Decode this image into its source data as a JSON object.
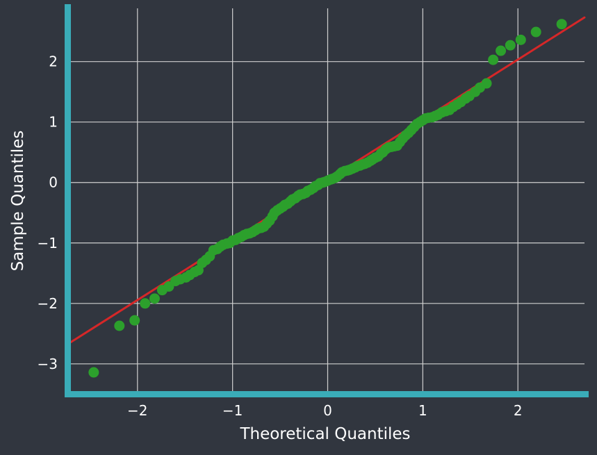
{
  "chart_data": {
    "type": "scatter",
    "title": "",
    "xlabel": "Theoretical Quantiles",
    "ylabel": "Sample Quantiles",
    "xlim": [
      -2.7,
      2.7
    ],
    "ylim": [
      -3.45,
      2.95
    ],
    "xticks": [
      -2,
      -1,
      0,
      1,
      2
    ],
    "yticks": [
      -3,
      -2,
      -1,
      0,
      1,
      2
    ],
    "xtick_labels": [
      "−2",
      "−1",
      "0",
      "1",
      "2"
    ],
    "ytick_labels": [
      "−3",
      "−2",
      "−1",
      "0",
      "1",
      "2"
    ],
    "grid": true,
    "colors": {
      "background": "#31363f",
      "points": "#2ca02c",
      "line": "#d62728",
      "spines": "#3aacb8",
      "grid": "#d0d0d0"
    },
    "series": [
      {
        "kind": "points",
        "points": [
          [
            -2.46,
            -3.14
          ],
          [
            -2.19,
            -2.37
          ],
          [
            -2.03,
            -2.28
          ],
          [
            -1.92,
            -2.0
          ],
          [
            -1.82,
            -1.92
          ],
          [
            -1.74,
            -1.78
          ],
          [
            -1.67,
            -1.72
          ],
          [
            -1.6,
            -1.63
          ],
          [
            -1.55,
            -1.6
          ],
          [
            -1.49,
            -1.57
          ],
          [
            -1.45,
            -1.53
          ],
          [
            -1.4,
            -1.48
          ],
          [
            -1.36,
            -1.45
          ],
          [
            -1.32,
            -1.33
          ],
          [
            -1.28,
            -1.28
          ],
          [
            -1.24,
            -1.22
          ],
          [
            -1.2,
            -1.12
          ],
          [
            -1.16,
            -1.1
          ],
          [
            -1.13,
            -1.06
          ],
          [
            -1.1,
            -1.03
          ],
          [
            -1.06,
            -1.01
          ],
          [
            -1.03,
            -1.0
          ],
          [
            -1.0,
            -0.96
          ],
          [
            -0.97,
            -0.95
          ],
          [
            -0.94,
            -0.92
          ],
          [
            -0.91,
            -0.9
          ],
          [
            -0.88,
            -0.87
          ],
          [
            -0.85,
            -0.85
          ],
          [
            -0.82,
            -0.84
          ],
          [
            -0.79,
            -0.82
          ],
          [
            -0.76,
            -0.79
          ],
          [
            -0.73,
            -0.76
          ],
          [
            -0.7,
            -0.75
          ],
          [
            -0.67,
            -0.73
          ],
          [
            -0.64,
            -0.68
          ],
          [
            -0.61,
            -0.63
          ],
          [
            -0.58,
            -0.56
          ],
          [
            -0.56,
            -0.5
          ],
          [
            -0.53,
            -0.46
          ],
          [
            -0.5,
            -0.43
          ],
          [
            -0.47,
            -0.4
          ],
          [
            -0.45,
            -0.37
          ],
          [
            -0.42,
            -0.35
          ],
          [
            -0.39,
            -0.31
          ],
          [
            -0.37,
            -0.28
          ],
          [
            -0.34,
            -0.26
          ],
          [
            -0.31,
            -0.22
          ],
          [
            -0.29,
            -0.2
          ],
          [
            -0.26,
            -0.19
          ],
          [
            -0.23,
            -0.17
          ],
          [
            -0.21,
            -0.14
          ],
          [
            -0.18,
            -0.12
          ],
          [
            -0.15,
            -0.09
          ],
          [
            -0.13,
            -0.06
          ],
          [
            -0.1,
            -0.04
          ],
          [
            -0.08,
            -0.01
          ],
          [
            -0.05,
            0.0
          ],
          [
            -0.03,
            0.01
          ],
          [
            0.0,
            0.03
          ],
          [
            0.03,
            0.05
          ],
          [
            0.05,
            0.06
          ],
          [
            0.08,
            0.08
          ],
          [
            0.1,
            0.1
          ],
          [
            0.13,
            0.14
          ],
          [
            0.15,
            0.17
          ],
          [
            0.18,
            0.19
          ],
          [
            0.21,
            0.2
          ],
          [
            0.23,
            0.21
          ],
          [
            0.26,
            0.23
          ],
          [
            0.29,
            0.25
          ],
          [
            0.31,
            0.27
          ],
          [
            0.34,
            0.28
          ],
          [
            0.37,
            0.3
          ],
          [
            0.39,
            0.31
          ],
          [
            0.42,
            0.33
          ],
          [
            0.45,
            0.36
          ],
          [
            0.47,
            0.38
          ],
          [
            0.5,
            0.41
          ],
          [
            0.53,
            0.43
          ],
          [
            0.56,
            0.48
          ],
          [
            0.58,
            0.5
          ],
          [
            0.61,
            0.55
          ],
          [
            0.64,
            0.58
          ],
          [
            0.67,
            0.59
          ],
          [
            0.7,
            0.6
          ],
          [
            0.73,
            0.61
          ],
          [
            0.76,
            0.67
          ],
          [
            0.79,
            0.73
          ],
          [
            0.82,
            0.78
          ],
          [
            0.85,
            0.82
          ],
          [
            0.88,
            0.87
          ],
          [
            0.91,
            0.92
          ],
          [
            0.94,
            0.97
          ],
          [
            0.97,
            1.0
          ],
          [
            1.0,
            1.03
          ],
          [
            1.03,
            1.06
          ],
          [
            1.06,
            1.07
          ],
          [
            1.1,
            1.08
          ],
          [
            1.13,
            1.1
          ],
          [
            1.16,
            1.12
          ],
          [
            1.2,
            1.16
          ],
          [
            1.24,
            1.18
          ],
          [
            1.28,
            1.2
          ],
          [
            1.32,
            1.25
          ],
          [
            1.36,
            1.29
          ],
          [
            1.4,
            1.33
          ],
          [
            1.45,
            1.39
          ],
          [
            1.49,
            1.43
          ],
          [
            1.55,
            1.5
          ],
          [
            1.6,
            1.57
          ],
          [
            1.67,
            1.64
          ],
          [
            1.74,
            2.03
          ],
          [
            1.82,
            2.18
          ],
          [
            1.92,
            2.27
          ],
          [
            2.03,
            2.36
          ],
          [
            2.19,
            2.49
          ],
          [
            2.46,
            2.62
          ]
        ]
      },
      {
        "kind": "line",
        "points": [
          [
            -2.7,
            -2.64
          ],
          [
            2.7,
            2.73
          ]
        ]
      }
    ]
  }
}
